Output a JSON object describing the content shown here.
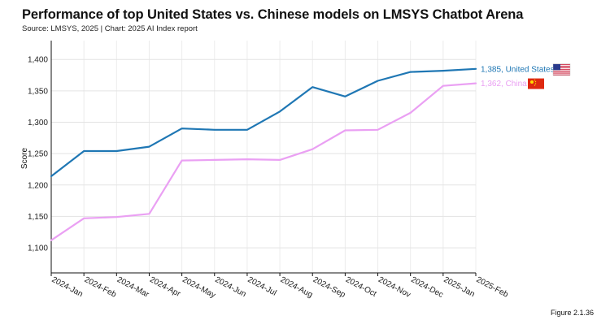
{
  "figure_label": "Figure 2.1.36",
  "chart_data": {
    "type": "line",
    "title": "Performance of top United States vs. Chinese models on LMSYS Chatbot Arena",
    "subtitle": "Source: LMSYS, 2025 | Chart: 2025 AI Index report",
    "xlabel": "",
    "ylabel": "Score",
    "ylim": [
      1060,
      1430
    ],
    "yticks": [
      1100,
      1150,
      1200,
      1250,
      1300,
      1350,
      1400
    ],
    "ytick_labels": [
      "1,100",
      "1,150",
      "1,200",
      "1,250",
      "1,300",
      "1,350",
      "1,400"
    ],
    "grid": true,
    "categories": [
      "2024-Jan",
      "2024-Feb",
      "2024-Mar",
      "2024-Apr",
      "2024-May",
      "2024-Jun",
      "2024-Jul",
      "2024-Aug",
      "2024-Sep",
      "2024-Oct",
      "2024-Nov",
      "2024-Dec",
      "2025-Jan",
      "2025-Feb"
    ],
    "series": [
      {
        "name": "United States",
        "color": "#1f77b4",
        "flag": "us-flag",
        "end_label": "1,385, United States",
        "values": [
          1214,
          1254,
          1254,
          1261,
          1290,
          1288,
          1288,
          1317,
          1356,
          1341,
          1366,
          1380,
          1382,
          1385
        ]
      },
      {
        "name": "China",
        "color": "#eaa0f3",
        "flag": "china-flag",
        "end_label": "1,362, China",
        "values": [
          1112,
          1147,
          1149,
          1154,
          1239,
          1240,
          1241,
          1240,
          1257,
          1287,
          1288,
          1315,
          1358,
          1362
        ]
      }
    ]
  }
}
